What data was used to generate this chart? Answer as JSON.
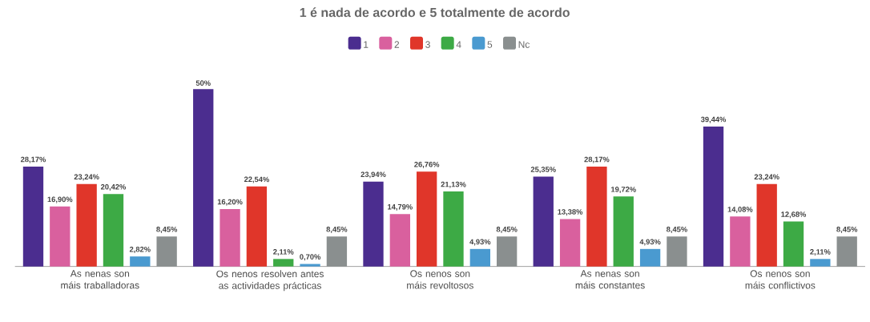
{
  "chart_data": {
    "type": "bar",
    "title": "1 é nada de acordo e 5 totalmente de acordo",
    "categories": [
      "As nenas son máis traballadoras",
      "Os nenos resolven antes as actividades prácticas",
      "Os nenos son máis revoltosos",
      "As nenas son máis constantes",
      "Os nenos son máis conflictivos"
    ],
    "series": [
      {
        "name": "1",
        "color": "#4b2d8f",
        "values": [
          28.17,
          50,
          23.94,
          25.35,
          39.44
        ],
        "value_labels": [
          "28,17%",
          "50%",
          "23,94%",
          "25,35%",
          "39,44%"
        ]
      },
      {
        "name": "2",
        "color": "#d9609e",
        "values": [
          16.9,
          16.2,
          14.79,
          13.38,
          14.08
        ],
        "value_labels": [
          "16,90%",
          "16,20%",
          "14,79%",
          "13,38%",
          "14,08%"
        ]
      },
      {
        "name": "3",
        "color": "#e0362a",
        "values": [
          23.24,
          22.54,
          26.76,
          28.17,
          23.24
        ],
        "value_labels": [
          "23,24%",
          "22,54%",
          "26,76%",
          "28,17%",
          "23,24%"
        ]
      },
      {
        "name": "4",
        "color": "#3daa45",
        "values": [
          20.42,
          2.11,
          21.13,
          19.72,
          12.68
        ],
        "value_labels": [
          "20,42%",
          "2,11%",
          "21,13%",
          "19,72%",
          "12,68%"
        ]
      },
      {
        "name": "5",
        "color": "#4a9ad0",
        "values": [
          2.82,
          0.7,
          4.93,
          4.93,
          2.11
        ],
        "value_labels": [
          "2,82%",
          "0,70%",
          "4,93%",
          "4,93%",
          "2,11%"
        ]
      },
      {
        "name": "Nc",
        "color": "#8a8f8f",
        "values": [
          8.45,
          8.45,
          8.45,
          8.45,
          8.45
        ],
        "value_labels": [
          "8,45%",
          "8,45%",
          "8,45%",
          "8,45%",
          "8,45%"
        ]
      }
    ],
    "legend": "top",
    "grid": false
  }
}
